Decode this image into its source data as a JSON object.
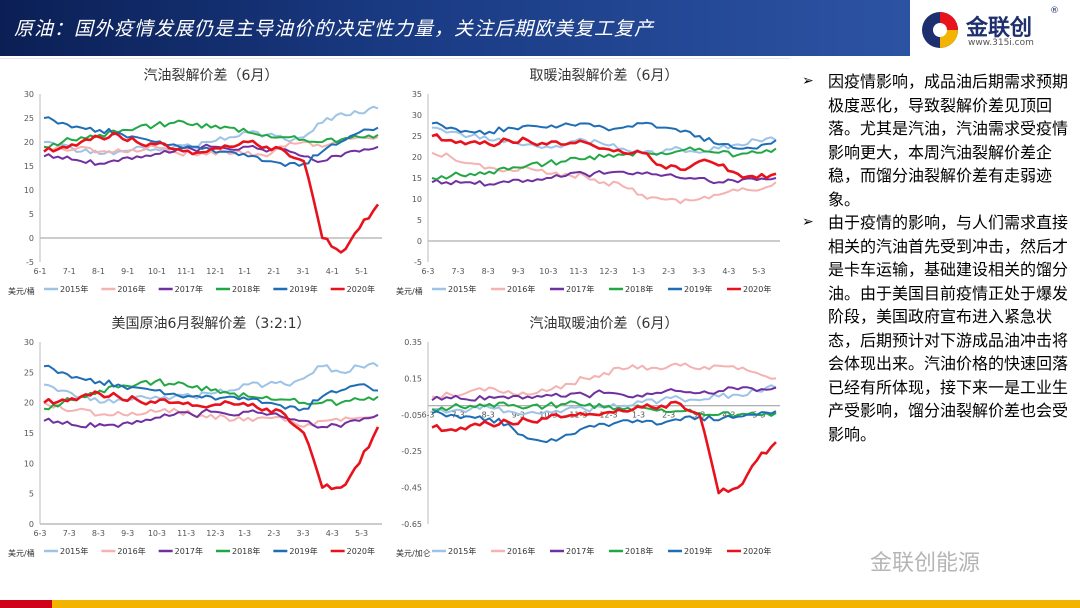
{
  "header": {
    "title": "原油：国外疫情发展仍是主导油价的决定性力量，关注后期欧美复工复产"
  },
  "logo": {
    "name": "金联创",
    "reg": "®",
    "url": "www.315i.com"
  },
  "watermark": "金联创能源",
  "colors": {
    "y2015": "#9dc3e6",
    "y2016": "#f4b2b0",
    "y2017": "#7030a0",
    "y2018": "#21a845",
    "y2019": "#1f6db5",
    "y2020": "#e8121c"
  },
  "sidebar": {
    "bullets": [
      "因疫情影响，成品油后期需求预期极度恶化，导致裂解价差见顶回落。尤其是汽油，汽油需求受疫情影响更大，本周汽油裂解价差企稳，而馏分油裂解价差有走弱迹象。",
      "由于疫情的影响，与人们需求直接相关的汽油首先受到冲击，然后才是卡车运输，基础建设相关的馏分油。由于美国目前疫情正处于爆发阶段，美国政府宣布进入紧急状态，后期预计对下游成品油冲击将会体现出来。汽油价格的快速回落已经有所体现，接下来一是工业生产受影响，馏分油裂解价差也会受影响。"
    ]
  },
  "chart_data": [
    {
      "type": "line",
      "title": "汽油裂解价差（6月）",
      "ylabel": "美元/桶",
      "ylim": [
        -5,
        30
      ],
      "yticks": [
        "30",
        "25",
        "20",
        "15",
        "10",
        "5",
        "0",
        "-5"
      ],
      "xticks": [
        "6-1",
        "7-1",
        "8-1",
        "9-1",
        "10-1",
        "11-1",
        "12-1",
        "1-1",
        "2-1",
        "3-1",
        "4-1",
        "5-1"
      ],
      "legend": [
        "2015年",
        "2016年",
        "2017年",
        "2018年",
        "2019年",
        "2020年"
      ],
      "series": [
        {
          "name": "2015年",
          "values": [
            20,
            19.5,
            18,
            17.5,
            18,
            19,
            18.5,
            19,
            19,
            20,
            21,
            22,
            21.5,
            20.5,
            21,
            24,
            26,
            26,
            27
          ]
        },
        {
          "name": "2016年",
          "values": [
            19,
            18.5,
            19,
            18,
            18.5,
            18,
            19,
            18,
            17.5,
            18,
            17.5,
            18,
            17,
            19,
            20,
            19,
            20,
            21,
            21
          ]
        },
        {
          "name": "2017年",
          "values": [
            17,
            16.5,
            16,
            15.5,
            16,
            17,
            17.5,
            18,
            18.5,
            19,
            18.5,
            19,
            18,
            18.5,
            17,
            16,
            17,
            18,
            19
          ]
        },
        {
          "name": "2018年",
          "values": [
            19,
            20,
            21,
            21.5,
            22,
            23,
            23.5,
            24,
            23.5,
            23,
            23,
            22,
            21.5,
            21,
            20.5,
            20,
            20.5,
            21,
            21.5
          ]
        },
        {
          "name": "2019年",
          "values": [
            25,
            24,
            23,
            22.5,
            22,
            21,
            20,
            19.5,
            19,
            18.5,
            18,
            17,
            16,
            15,
            15.5,
            18,
            20,
            22,
            23
          ]
        },
        {
          "name": "2020年",
          "values": [
            18,
            19,
            20,
            21,
            21.5,
            20,
            19.5,
            18.5,
            17.5,
            18.5,
            19,
            20,
            19,
            18,
            16,
            0,
            -3,
            2,
            7
          ]
        }
      ]
    },
    {
      "type": "line",
      "title": "取暖油裂解价差（6月）",
      "ylabel": "美元/桶",
      "ylim": [
        -5,
        35
      ],
      "yticks": [
        "35",
        "30",
        "25",
        "20",
        "15",
        "10",
        "5",
        "0",
        "-5"
      ],
      "xticks": [
        "6-3",
        "7-3",
        "8-3",
        "9-3",
        "10-3",
        "11-3",
        "12-3",
        "1-3",
        "2-3",
        "3-3",
        "4-3",
        "5-3"
      ],
      "legend": [
        "2015年",
        "2016年",
        "2017年",
        "2018年",
        "2019年",
        "2020年"
      ],
      "series": [
        {
          "name": "2015年",
          "values": [
            27,
            26,
            25,
            24,
            24,
            23,
            22.5,
            23,
            24,
            23,
            22,
            21,
            21,
            22,
            21,
            22,
            23,
            24,
            24
          ]
        },
        {
          "name": "2016年",
          "values": [
            21,
            20,
            18.5,
            17.5,
            17,
            17.5,
            16,
            16,
            15.5,
            14,
            13,
            11,
            10,
            9,
            10,
            11,
            12,
            12,
            14
          ]
        },
        {
          "name": "2017年",
          "values": [
            14,
            13.5,
            14,
            13.5,
            14,
            14.5,
            15,
            15.5,
            16,
            16,
            16.5,
            16,
            15.5,
            15,
            15,
            14,
            14,
            14.5,
            15
          ]
        },
        {
          "name": "2018年",
          "values": [
            15,
            15.5,
            16,
            16.5,
            17,
            18,
            18.5,
            19,
            19.5,
            20,
            20.5,
            21,
            21,
            21.5,
            22,
            21,
            20.5,
            21,
            22
          ]
        },
        {
          "name": "2019年",
          "values": [
            28,
            27,
            26,
            26,
            27,
            27.5,
            27,
            28,
            28,
            27,
            27,
            28,
            27,
            26,
            25,
            23,
            22,
            22,
            24
          ]
        },
        {
          "name": "2020年",
          "values": [
            25,
            24,
            23.5,
            23,
            24,
            24,
            23,
            23,
            23.5,
            22,
            21,
            21,
            18,
            17,
            19,
            18,
            16,
            15,
            16
          ]
        }
      ]
    },
    {
      "type": "line",
      "title": "美国原油6月裂解价差（3:2:1）",
      "ylabel": "美元/桶",
      "ylim": [
        0,
        30
      ],
      "yticks": [
        "30",
        "25",
        "20",
        "15",
        "10",
        "5",
        "0"
      ],
      "xticks": [
        "6-3",
        "7-3",
        "8-3",
        "9-3",
        "10-3",
        "11-3",
        "12-3",
        "1-3",
        "2-3",
        "3-3",
        "4-3",
        "5-3"
      ],
      "legend": [
        "2015年",
        "2016年",
        "2017年",
        "2018年",
        "2019年",
        "2020年"
      ],
      "series": [
        {
          "name": "2015年",
          "values": [
            23,
            22,
            21,
            20,
            20.5,
            21,
            21,
            21,
            21,
            21.5,
            22,
            23,
            23,
            23,
            24,
            26,
            25,
            26,
            26
          ]
        },
        {
          "name": "2016年",
          "values": [
            20,
            19,
            19,
            18,
            18.5,
            18,
            18.5,
            19,
            18,
            18,
            17,
            17.5,
            17.5,
            17,
            16,
            17,
            17,
            17.5,
            18
          ]
        },
        {
          "name": "2017年",
          "values": [
            17,
            16.5,
            16,
            16.5,
            16,
            17,
            17.5,
            18,
            18,
            18.5,
            18,
            18.5,
            18,
            17.5,
            17,
            16,
            16,
            17,
            18
          ]
        },
        {
          "name": "2018年",
          "values": [
            19,
            20,
            21,
            22,
            22.5,
            23,
            23.5,
            23,
            22.5,
            22,
            21.5,
            21,
            21,
            20.5,
            20,
            20,
            20,
            20.5,
            21
          ]
        },
        {
          "name": "2019年",
          "values": [
            26,
            25,
            24,
            23.5,
            23,
            22.5,
            22,
            21.5,
            21,
            21,
            21,
            20.5,
            20,
            19,
            19,
            21,
            22,
            23,
            22
          ]
        },
        {
          "name": "2020年",
          "values": [
            20,
            20.5,
            21,
            21.5,
            21,
            20.5,
            20,
            20,
            19.5,
            19.5,
            20,
            19.5,
            19,
            18,
            15,
            6,
            6,
            10,
            16
          ]
        }
      ]
    },
    {
      "type": "line",
      "title": "汽油取暖油价差（6月）",
      "ylabel": "美元/加仑",
      "ylim": [
        -0.65,
        0.35
      ],
      "yticks": [
        "0.35",
        "0.15",
        "-0.05",
        "-0.25",
        "-0.45",
        "-0.65"
      ],
      "xticks": [
        "6-3",
        "7-3",
        "8-3",
        "9-3",
        "10-3",
        "11-3",
        "12-3",
        "1-3",
        "2-3",
        "3-3",
        "4-3",
        "5-3"
      ],
      "legend": [
        "2015年",
        "2016年",
        "2017年",
        "2018年",
        "2019年",
        "2020年"
      ],
      "series": [
        {
          "name": "2015年",
          "values": [
            -0.02,
            -0.03,
            -0.02,
            -0.01,
            -0.03,
            -0.04,
            -0.03,
            -0.02,
            -0.02,
            -0.01,
            0.0,
            0.02,
            0.03,
            0.04,
            0.03,
            0.05,
            0.06,
            0.08,
            0.1
          ]
        },
        {
          "name": "2016年",
          "values": [
            0.05,
            0.06,
            0.08,
            0.1,
            0.08,
            0.06,
            0.08,
            0.12,
            0.15,
            0.18,
            0.2,
            0.22,
            0.2,
            0.22,
            0.2,
            0.22,
            0.2,
            0.18,
            0.15
          ]
        },
        {
          "name": "2017年",
          "values": [
            0.03,
            0.04,
            0.03,
            0.05,
            0.04,
            0.05,
            0.06,
            0.05,
            0.06,
            0.07,
            0.06,
            0.05,
            0.07,
            0.08,
            0.07,
            0.08,
            0.09,
            0.08,
            0.1
          ]
        },
        {
          "name": "2018年",
          "values": [
            -0.02,
            -0.01,
            0.0,
            0.01,
            0.0,
            -0.01,
            0.0,
            0.01,
            0.0,
            -0.01,
            -0.02,
            -0.01,
            -0.02,
            -0.03,
            -0.04,
            -0.05,
            -0.05,
            -0.05,
            -0.04
          ]
        },
        {
          "name": "2019年",
          "values": [
            -0.04,
            -0.05,
            -0.06,
            -0.07,
            -0.1,
            -0.18,
            -0.2,
            -0.16,
            -0.12,
            -0.1,
            -0.08,
            -0.09,
            -0.1,
            -0.08,
            -0.06,
            -0.08,
            -0.06,
            -0.05,
            -0.03
          ]
        },
        {
          "name": "2020年",
          "values": [
            -0.12,
            -0.13,
            -0.11,
            -0.1,
            -0.09,
            -0.08,
            -0.07,
            -0.06,
            -0.05,
            -0.04,
            -0.03,
            -0.01,
            0.0,
            0.01,
            -0.05,
            -0.48,
            -0.45,
            -0.3,
            -0.2
          ]
        }
      ]
    }
  ]
}
